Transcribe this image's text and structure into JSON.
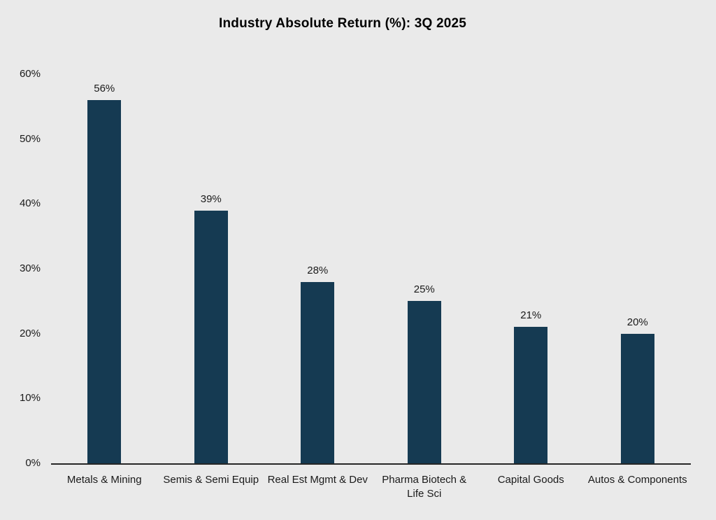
{
  "page": {
    "background_color": "#EAEAEA"
  },
  "chart_data": {
    "type": "bar",
    "title": "Industry Absolute Return (%): 3Q 2025",
    "categories": [
      "Metals & Mining",
      "Semis & Semi Equip",
      "Real Est Mgmt & Dev",
      "Pharma Biotech & Life Sci",
      "Capital Goods",
      "Autos & Components"
    ],
    "category_display": [
      "Metals & Mining",
      "Semis & Semi Equip",
      "Real Est Mgmt & Dev",
      "Pharma Biotech &\nLife Sci",
      "Capital Goods",
      "Autos & Components"
    ],
    "values": [
      56,
      39,
      28,
      25,
      21,
      20
    ],
    "value_labels": [
      "56%",
      "39%",
      "28%",
      "25%",
      "21%",
      "20%"
    ],
    "xlabel": "",
    "ylabel": "",
    "ylim": [
      0,
      60
    ],
    "yticks": [
      0,
      10,
      20,
      30,
      40,
      50,
      60
    ],
    "ytick_labels": [
      "0%",
      "10%",
      "20%",
      "30%",
      "40%",
      "50%",
      "60%"
    ],
    "grid": false,
    "legend": "none",
    "bar_color": "#153A52",
    "axis_line_color": "#262626",
    "text_color": "#1A1A1A"
  }
}
